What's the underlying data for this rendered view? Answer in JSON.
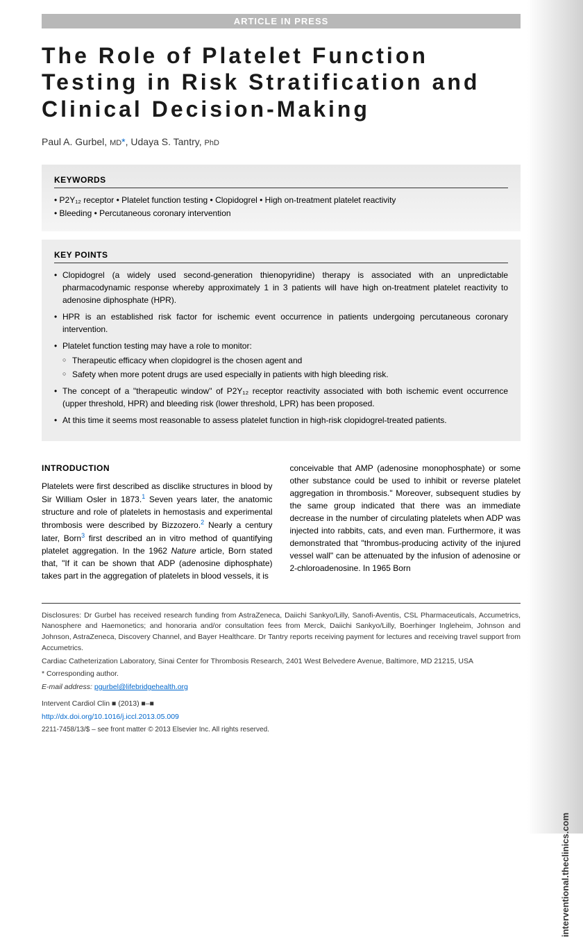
{
  "banner": "ARTICLE IN PRESS",
  "title": "The Role of Platelet Function Testing in Risk Stratification and Clinical Decision-Making",
  "authors": {
    "a1_name": "Paul A. Gurbel,",
    "a1_degree": "MD",
    "a1_corr": "*",
    "a2_name": ", Udaya S. Tantry,",
    "a2_degree": "PhD"
  },
  "keywords": {
    "heading": "KEYWORDS",
    "line1": "• P2Y₁₂ receptor • Platelet function testing • Clopidogrel • High on-treatment platelet reactivity",
    "line2": "• Bleeding • Percutaneous coronary intervention"
  },
  "keypoints": {
    "heading": "KEY POINTS",
    "p1": "Clopidogrel (a widely used second-generation thienopyridine) therapy is associated with an unpredictable pharmacodynamic response whereby approximately 1 in 3 patients will have high on-treatment platelet reactivity to adenosine diphosphate (HPR).",
    "p2": "HPR is an established risk factor for ischemic event occurrence in patients undergoing percutaneous coronary intervention.",
    "p3": "Platelet function testing may have a role to monitor:",
    "p3a": "Therapeutic efficacy when clopidogrel is the chosen agent and",
    "p3b": "Safety when more potent drugs are used especially in patients with high bleeding risk.",
    "p4": "The concept of a \"therapeutic window\" of P2Y₁₂ receptor reactivity associated with both ischemic event occurrence (upper threshold, HPR) and bleeding risk (lower threshold, LPR) has been proposed.",
    "p5": "At this time it seems most reasonable to assess platelet function in high-risk clopidogrel-treated patients."
  },
  "intro": {
    "heading": "INTRODUCTION",
    "col1_p1a": "Platelets were first described as disclike structures in blood by Sir William Osler in 1873.",
    "col1_p1b": " Seven years later, the anatomic structure and role of platelets in hemostasis and experimental thrombosis were described by Bizzozero.",
    "col1_p1c": " Nearly a century later, Born",
    "col1_p1d": " first described an in vitro method of quantifying platelet aggregation. In the 1962 ",
    "col1_p1e": "Nature",
    "col1_p1f": " article, Born stated that, \"If it can be shown that ADP (adenosine diphosphate) takes part in the aggregation of platelets in blood vessels, it is",
    "col2_p1": "conceivable that AMP (adenosine monophosphate) or some other substance could be used to inhibit or reverse platelet aggregation in thrombosis.\" Moreover, subsequent studies by the same group indicated that there was an immediate decrease in the number of circulating platelets when ADP was injected into rabbits, cats, and even man. Furthermore, it was demonstrated that \"thrombus-producing activity of the injured vessel wall\" can be attenuated by the infusion of adenosine or 2-chloroadenosine. In 1965 Born"
  },
  "footer": {
    "disclosure": "Disclosures: Dr Gurbel has received research funding from AstraZeneca, Daiichi Sankyo/Lilly, Sanofi-Aventis, CSL Pharmaceuticals, Accumetrics, Nanosphere and Haemonetics; and honoraria and/or consultation fees from Merck, Daiichi Sankyo/Lilly, Boerhinger Ingleheim, Johnson and Johnson, AstraZeneca, Discovery Channel, and Bayer Healthcare. Dr Tantry reports receiving payment for lectures and receiving travel support from Accumetrics.",
    "affiliation": "Cardiac Catheterization Laboratory, Sinai Center for Thrombosis Research, 2401 West Belvedere Avenue, Baltimore, MD 21215, USA",
    "corr_label": "* Corresponding author.",
    "email_label": "E-mail address:",
    "email": "pgurbel@lifebridgehealth.org",
    "journal": "Intervent Cardiol Clin ■ (2013) ■–■",
    "doi": "http://dx.doi.org/10.1016/j.iccl.2013.05.009",
    "copyright": "2211-7458/13/$ – see front matter © 2013 Elsevier Inc. All rights reserved."
  },
  "side_label": "interventional.theclinics.com"
}
